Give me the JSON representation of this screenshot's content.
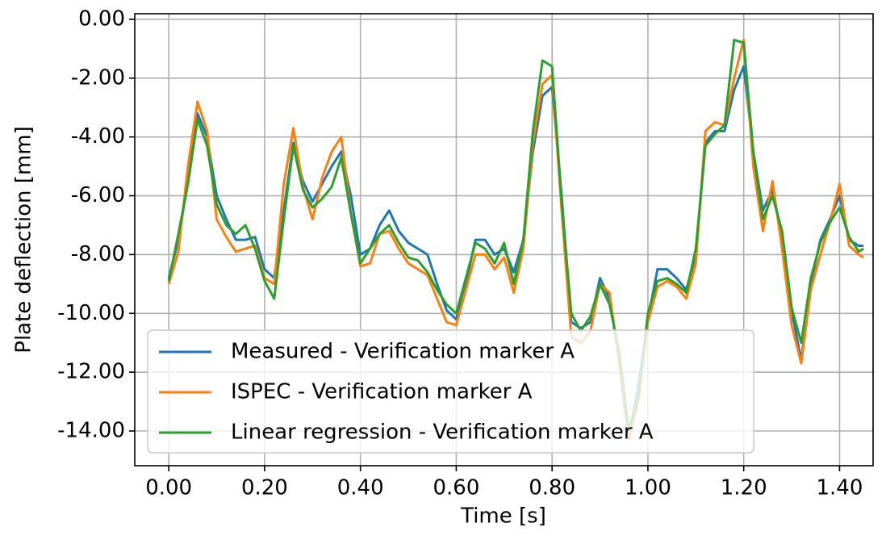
{
  "chart_data": {
    "type": "line",
    "xlabel": "Time [s]",
    "ylabel": "Plate deflection [mm]",
    "x": [
      0.0,
      0.02,
      0.04,
      0.06,
      0.08,
      0.1,
      0.12,
      0.14,
      0.16,
      0.18,
      0.2,
      0.22,
      0.24,
      0.26,
      0.28,
      0.3,
      0.32,
      0.34,
      0.36,
      0.38,
      0.4,
      0.42,
      0.44,
      0.46,
      0.48,
      0.5,
      0.52,
      0.54,
      0.56,
      0.58,
      0.6,
      0.62,
      0.64,
      0.66,
      0.68,
      0.7,
      0.72,
      0.74,
      0.76,
      0.78,
      0.8,
      0.82,
      0.84,
      0.86,
      0.88,
      0.9,
      0.92,
      0.94,
      0.96,
      0.98,
      1.0,
      1.02,
      1.04,
      1.06,
      1.08,
      1.1,
      1.12,
      1.14,
      1.16,
      1.18,
      1.2,
      1.22,
      1.24,
      1.26,
      1.28,
      1.3,
      1.32,
      1.34,
      1.36,
      1.38,
      1.4,
      1.42,
      1.44,
      1.45
    ],
    "series": [
      {
        "name": "Measured - Verification marker A",
        "color": "#1f77b4",
        "values": [
          -8.8,
          -7.5,
          -5.5,
          -3.2,
          -4.0,
          -6.0,
          -6.8,
          -7.5,
          -7.5,
          -7.4,
          -8.5,
          -8.8,
          -6.5,
          -4.2,
          -5.5,
          -6.2,
          -5.6,
          -5.0,
          -4.5,
          -6.0,
          -8.0,
          -7.8,
          -7.0,
          -6.5,
          -7.2,
          -7.6,
          -7.8,
          -8.0,
          -9.0,
          -9.9,
          -10.2,
          -9.0,
          -7.5,
          -7.5,
          -8.0,
          -7.8,
          -8.6,
          -7.5,
          -4.5,
          -2.6,
          -2.3,
          -6.0,
          -10.3,
          -10.5,
          -10.3,
          -8.8,
          -9.5,
          -11.6,
          -14.2,
          -12.5,
          -10.2,
          -8.5,
          -8.5,
          -8.8,
          -9.2,
          -8.0,
          -4.2,
          -3.8,
          -3.8,
          -2.4,
          -1.6,
          -4.5,
          -6.5,
          -5.8,
          -7.4,
          -9.9,
          -11.6,
          -9.0,
          -7.5,
          -6.8,
          -6.0,
          -7.5,
          -7.7,
          -7.7
        ]
      },
      {
        "name": "ISPEC - Verification marker A",
        "color": "#ff7f0e",
        "values": [
          -9.0,
          -7.9,
          -5.0,
          -2.8,
          -3.8,
          -6.8,
          -7.4,
          -7.9,
          -7.8,
          -7.7,
          -8.8,
          -9.0,
          -5.6,
          -3.7,
          -5.7,
          -6.8,
          -5.4,
          -4.5,
          -4.0,
          -6.6,
          -8.4,
          -8.3,
          -7.3,
          -7.2,
          -7.8,
          -8.3,
          -8.5,
          -8.7,
          -9.5,
          -10.3,
          -10.4,
          -9.2,
          -8.0,
          -8.0,
          -8.5,
          -8.1,
          -9.3,
          -7.8,
          -4.2,
          -2.2,
          -1.9,
          -6.5,
          -10.8,
          -11.0,
          -10.6,
          -9.0,
          -9.3,
          -11.7,
          -14.3,
          -13.0,
          -10.3,
          -9.1,
          -8.9,
          -9.1,
          -9.5,
          -8.3,
          -3.8,
          -3.5,
          -3.6,
          -2.0,
          -0.7,
          -5.0,
          -7.2,
          -5.5,
          -7.8,
          -10.4,
          -11.7,
          -9.2,
          -8.0,
          -6.9,
          -5.6,
          -7.7,
          -8.0,
          -8.1
        ]
      },
      {
        "name": "Linear regression - Verification marker A",
        "color": "#2ca02c",
        "values": [
          -8.9,
          -7.3,
          -5.6,
          -3.4,
          -4.3,
          -6.3,
          -7.0,
          -7.3,
          -7.0,
          -7.8,
          -8.9,
          -9.5,
          -6.8,
          -4.3,
          -5.8,
          -6.4,
          -6.1,
          -5.7,
          -4.7,
          -6.6,
          -8.3,
          -7.8,
          -7.3,
          -7.0,
          -7.6,
          -8.1,
          -8.2,
          -8.6,
          -9.2,
          -9.7,
          -10.0,
          -8.8,
          -7.6,
          -7.8,
          -8.3,
          -7.6,
          -9.0,
          -7.5,
          -3.8,
          -1.4,
          -1.6,
          -6.2,
          -10.0,
          -10.6,
          -10.1,
          -9.0,
          -9.7,
          -11.3,
          -14.0,
          -12.8,
          -10.0,
          -8.9,
          -8.8,
          -9.0,
          -9.3,
          -7.8,
          -4.3,
          -3.9,
          -3.6,
          -0.7,
          -0.8,
          -4.5,
          -6.8,
          -6.0,
          -7.2,
          -9.8,
          -11.0,
          -8.8,
          -7.6,
          -6.9,
          -6.4,
          -7.4,
          -7.9,
          -7.8
        ]
      }
    ],
    "xlim": [
      -0.071,
      1.47
    ],
    "ylim": [
      -15.18,
      0.19
    ],
    "xticks": [
      {
        "value": 0,
        "label": "0.00"
      },
      {
        "value": 0.2,
        "label": "0.20"
      },
      {
        "value": 0.4,
        "label": "0.40"
      },
      {
        "value": 0.6,
        "label": "0.60"
      },
      {
        "value": 0.8,
        "label": "0.80"
      },
      {
        "value": 1.0,
        "label": "1.00"
      },
      {
        "value": 1.2,
        "label": "1.20"
      },
      {
        "value": 1.4,
        "label": "1.40"
      }
    ],
    "yticks": [
      {
        "value": 0,
        "label": "0.00"
      },
      {
        "value": -2,
        "label": "-2.00"
      },
      {
        "value": -4,
        "label": "-4.00"
      },
      {
        "value": -6,
        "label": "-6.00"
      },
      {
        "value": -8,
        "label": "-8.00"
      },
      {
        "value": -10,
        "label": "-10.00"
      },
      {
        "value": -12,
        "label": "-12.00"
      },
      {
        "value": -14,
        "label": "-14.00"
      }
    ],
    "grid": true,
    "legend": "lower left"
  }
}
